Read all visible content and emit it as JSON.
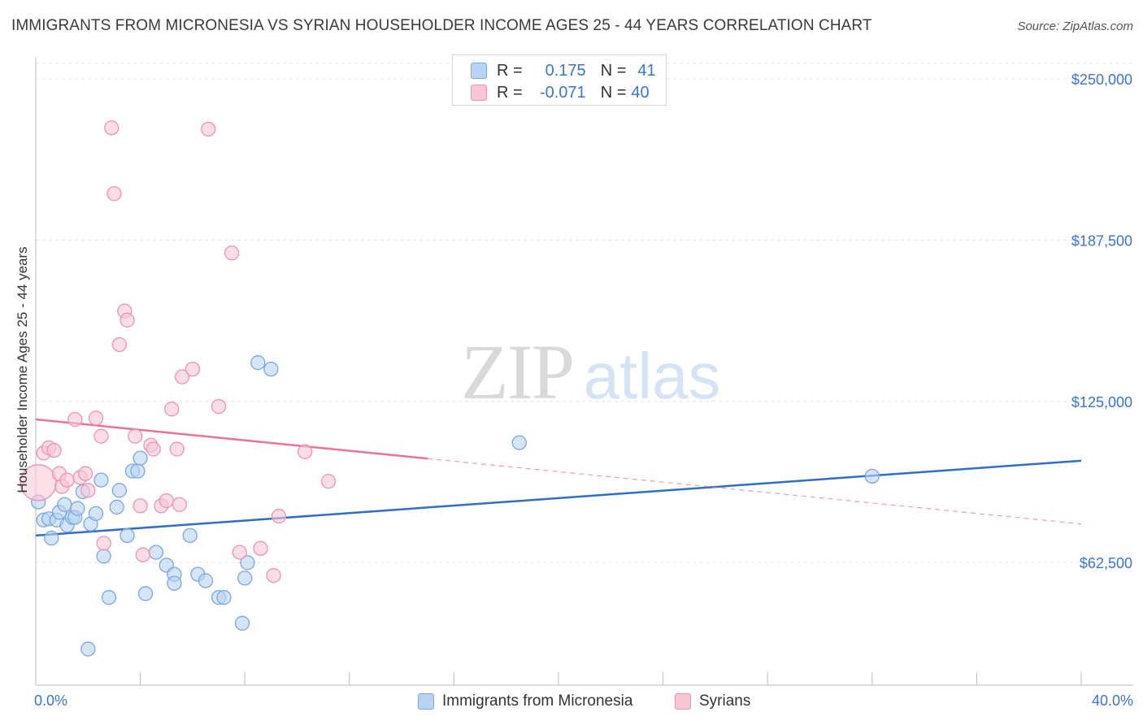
{
  "header": {
    "title": "IMMIGRANTS FROM MICRONESIA VS SYRIAN HOUSEHOLDER INCOME AGES 25 - 44 YEARS CORRELATION CHART",
    "source": "Source: ZipAtlas.com"
  },
  "legend": {
    "rows": [
      {
        "r_label": "R =",
        "r_value": "0.175",
        "n_label": "N =",
        "n_value": "41"
      },
      {
        "r_label": "R =",
        "r_value": "-0.071",
        "n_label": "N =",
        "n_value": "40"
      }
    ]
  },
  "watermark": {
    "zip": "ZIP",
    "atlas": "atlas"
  },
  "chart_data": {
    "type": "scatter",
    "title": "IMMIGRANTS FROM MICRONESIA VS SYRIAN HOUSEHOLDER INCOME AGES 25 - 44 YEARS CORRELATION CHART",
    "xlabel": "",
    "ylabel": "Householder Income Ages 25 - 44 years",
    "xlim": [
      0,
      40
    ],
    "ylim": [
      15000,
      262500
    ],
    "x_tick_labels": [
      "0.0%",
      "40.0%"
    ],
    "y_ticks": [
      62500,
      125000,
      187500,
      250000
    ],
    "y_tick_labels": [
      "$62,500",
      "$125,000",
      "$187,500",
      "$250,000"
    ],
    "grid": true,
    "series": [
      {
        "name": "Immigrants from Micronesia",
        "color": "#7ba7dd",
        "fill": "#b8d3f3",
        "line_color": "#2f6fc7",
        "trend": {
          "x0": 0,
          "y0": 73000,
          "x1": 40,
          "y1": 102000,
          "dashed_from": null
        },
        "points": [
          [
            0.1,
            86000
          ],
          [
            0.3,
            79000
          ],
          [
            0.5,
            79500
          ],
          [
            0.6,
            72000
          ],
          [
            0.8,
            79000
          ],
          [
            0.9,
            82000
          ],
          [
            1.1,
            85000
          ],
          [
            1.2,
            77000
          ],
          [
            1.4,
            80000
          ],
          [
            1.5,
            80000
          ],
          [
            1.6,
            83500
          ],
          [
            1.8,
            90000
          ],
          [
            2.1,
            77500
          ],
          [
            2.3,
            81500
          ],
          [
            2.5,
            94500
          ],
          [
            2.6,
            65000
          ],
          [
            2.8,
            49000
          ],
          [
            3.1,
            84000
          ],
          [
            3.2,
            90500
          ],
          [
            3.5,
            73000
          ],
          [
            3.7,
            98000
          ],
          [
            3.9,
            98000
          ],
          [
            4.0,
            103000
          ],
          [
            4.2,
            50500
          ],
          [
            4.6,
            66500
          ],
          [
            5.0,
            61500
          ],
          [
            5.3,
            58000
          ],
          [
            5.3,
            54500
          ],
          [
            5.9,
            73000
          ],
          [
            6.2,
            58000
          ],
          [
            6.5,
            55500
          ],
          [
            7.0,
            49000
          ],
          [
            7.2,
            49000
          ],
          [
            7.9,
            39000
          ],
          [
            8.0,
            56500
          ],
          [
            8.1,
            62500
          ],
          [
            8.5,
            140000
          ],
          [
            9.0,
            137500
          ],
          [
            2.0,
            29000
          ],
          [
            18.5,
            109000
          ],
          [
            32.0,
            96000
          ]
        ]
      },
      {
        "name": "Syrians",
        "color": "#ec94b0",
        "fill": "#f8c6d5",
        "line_color": "#e8729a",
        "trend": {
          "x0": 0,
          "y0": 118000,
          "x1": 40,
          "y1": 77500,
          "dashed_from": 15
        },
        "points": [
          [
            0.1,
            93500
          ],
          [
            0.3,
            105000
          ],
          [
            0.5,
            107000
          ],
          [
            0.7,
            106000
          ],
          [
            0.9,
            97000
          ],
          [
            1.0,
            92000
          ],
          [
            1.2,
            94500
          ],
          [
            1.5,
            118000
          ],
          [
            1.7,
            95500
          ],
          [
            1.9,
            97000
          ],
          [
            2.0,
            90500
          ],
          [
            2.3,
            118500
          ],
          [
            2.5,
            111500
          ],
          [
            2.6,
            70000
          ],
          [
            2.9,
            231000
          ],
          [
            3.0,
            205500
          ],
          [
            3.2,
            147000
          ],
          [
            3.4,
            160000
          ],
          [
            3.5,
            156500
          ],
          [
            3.8,
            111500
          ],
          [
            4.0,
            84500
          ],
          [
            4.1,
            65500
          ],
          [
            4.4,
            108000
          ],
          [
            4.5,
            106500
          ],
          [
            4.8,
            84500
          ],
          [
            5.0,
            86500
          ],
          [
            5.2,
            122000
          ],
          [
            5.4,
            106500
          ],
          [
            5.5,
            85000
          ],
          [
            5.6,
            134500
          ],
          [
            6.0,
            137500
          ],
          [
            6.6,
            230500
          ],
          [
            7.0,
            123000
          ],
          [
            7.5,
            182500
          ],
          [
            7.8,
            66500
          ],
          [
            8.6,
            68000
          ],
          [
            9.1,
            57500
          ],
          [
            9.3,
            80500
          ],
          [
            10.3,
            105500
          ],
          [
            11.2,
            94000
          ]
        ]
      }
    ]
  }
}
